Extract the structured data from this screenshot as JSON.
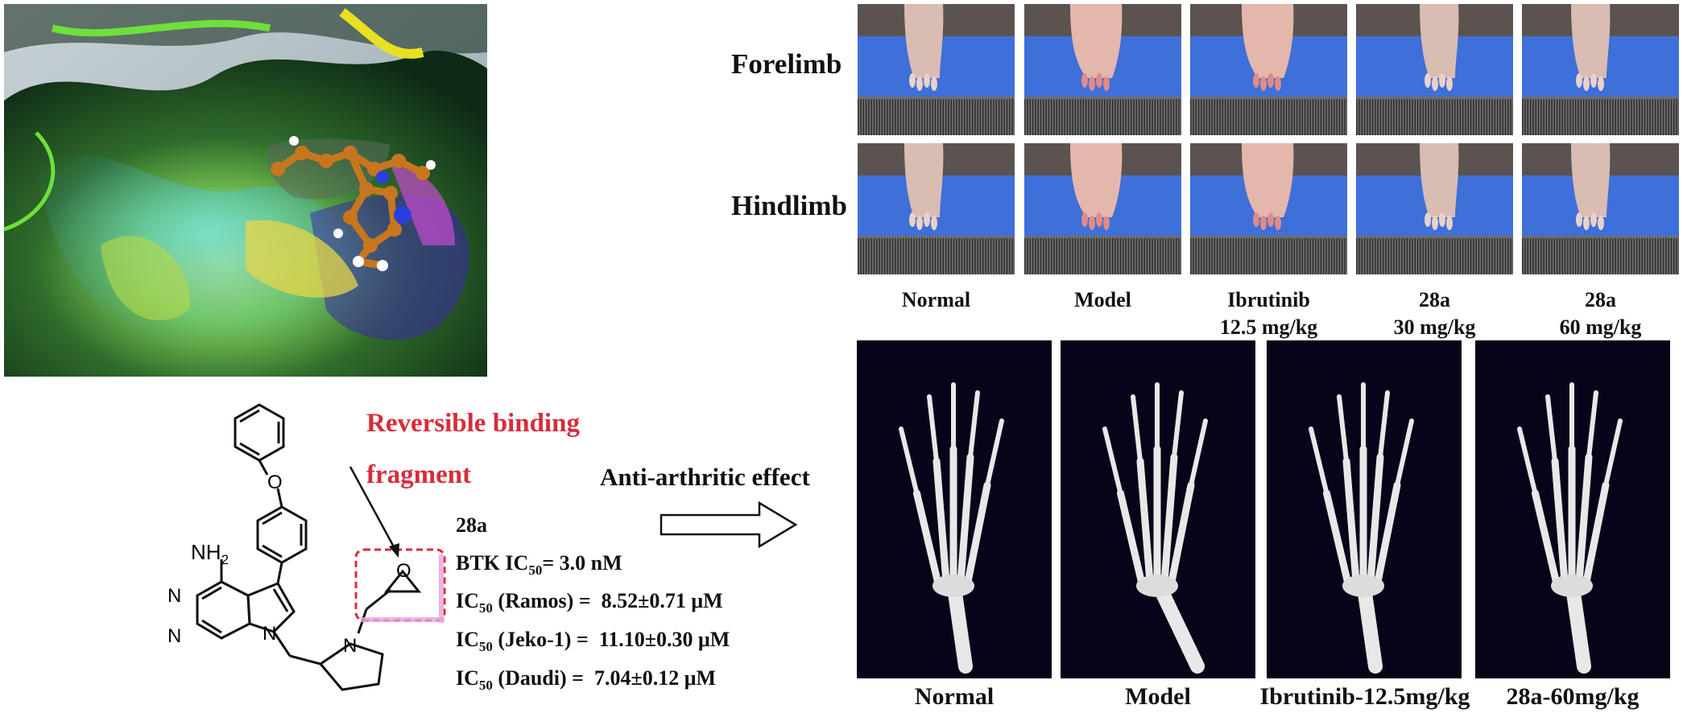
{
  "paw_rows": [
    "Forelimb",
    "Hindlimb"
  ],
  "paw_groups": [
    {
      "line1": "Normal",
      "line2": ""
    },
    {
      "line1": "Model",
      "line2": ""
    },
    {
      "line1": "Ibrutinib",
      "line2": "12.5 mg/kg"
    },
    {
      "line1": "28a",
      "line2": "30 mg/kg"
    },
    {
      "line1": "28a",
      "line2": "60 mg/kg"
    }
  ],
  "ct_groups": [
    "Normal",
    "Model",
    "Ibrutinib-12.5mg/kg",
    "28a-60mg/kg"
  ],
  "structure": {
    "amine_label": "NH",
    "amine_sub": "2",
    "n1": "N",
    "n2": "N",
    "n3": "N",
    "n4": "N",
    "o1": "O",
    "o2": "O"
  },
  "fragment": {
    "line1": "Reversible binding",
    "line2": "fragment"
  },
  "effect_label": "Anti-arthritic effect",
  "compound": {
    "name": "28a",
    "btk_prefix": "BTK IC",
    "btk_sub": "50",
    "btk_value": "= 3.0 nM",
    "assays": [
      {
        "prefix": "IC",
        "sub": "50",
        "cell": " (Ramos) =  ",
        "value": "8.52±0.71 μM"
      },
      {
        "prefix": "IC",
        "sub": "50",
        "cell": " (Jeko-1) =  ",
        "value": "11.10±0.30 μM"
      },
      {
        "prefix": "IC",
        "sub": "50",
        "cell": " (Daudi) =  ",
        "value": "7.04±0.12 μM"
      }
    ]
  },
  "colors": {
    "fragment_text": "#d62d3a",
    "fragment_box": "#d62d3a",
    "fragment_highlight": "#e7a1e0",
    "ct_background": "#060418",
    "photo_background": "#3f6fd8"
  }
}
